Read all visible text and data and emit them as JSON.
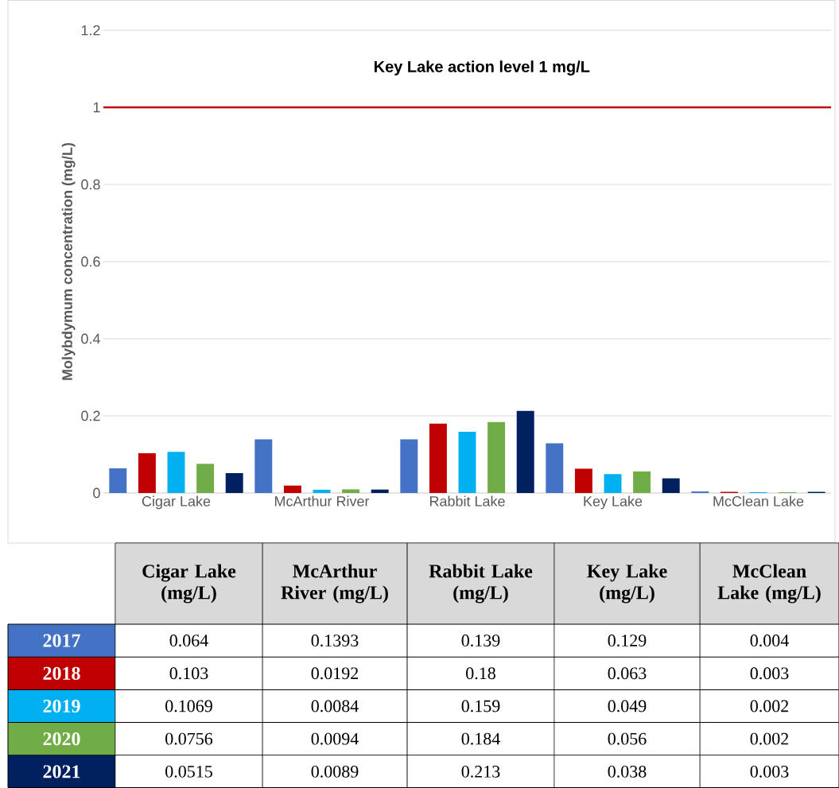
{
  "chart_data": {
    "type": "bar",
    "ylabel": "Molybdymum concentration (mg/L)",
    "categories": [
      "Cigar Lake",
      "McArthur River",
      "Rabbit Lake",
      "Key Lake",
      "McClean Lake"
    ],
    "series": [
      {
        "name": "2017",
        "color": "#4472c4",
        "values": [
          0.064,
          0.1393,
          0.139,
          0.129,
          0.004
        ]
      },
      {
        "name": "2018",
        "color": "#c00000",
        "values": [
          0.103,
          0.0192,
          0.18,
          0.063,
          0.003
        ]
      },
      {
        "name": "2019",
        "color": "#00b0f0",
        "values": [
          0.1069,
          0.0084,
          0.159,
          0.049,
          0.002
        ]
      },
      {
        "name": "2020",
        "color": "#70ad47",
        "values": [
          0.0756,
          0.0094,
          0.184,
          0.056,
          0.002
        ]
      },
      {
        "name": "2021",
        "color": "#002060",
        "values": [
          0.0515,
          0.0089,
          0.213,
          0.038,
          0.003
        ]
      }
    ],
    "ylim": [
      0,
      1.2
    ],
    "yticks": [
      0,
      0.2,
      0.4,
      0.6,
      0.8,
      1,
      1.2
    ],
    "grid": "y",
    "ref_lines": [
      {
        "axis": "y",
        "value": 1,
        "label": "Key Lake action level 1 mg/L",
        "color": "#c00000"
      }
    ],
    "data_labels": true,
    "annotations": [
      "Cigar Lake (mg/L)",
      "McArthur River (mg/L)",
      "Rabbit Lake (mg/L)",
      "Key Lake (mg/L)",
      "McClean Lake (mg/L)"
    ]
  }
}
